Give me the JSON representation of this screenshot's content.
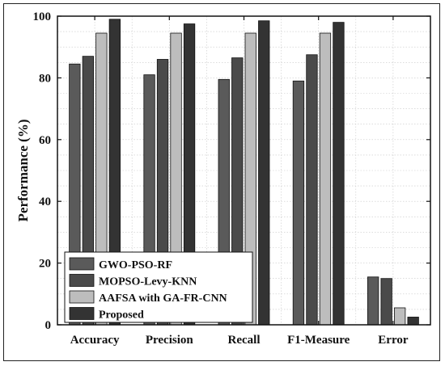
{
  "chart_data": {
    "type": "bar",
    "title": "",
    "xlabel": "",
    "ylabel": "Performance (%)",
    "ylim": [
      0,
      100
    ],
    "yticks": [
      0,
      20,
      40,
      60,
      80,
      100
    ],
    "grid": true,
    "legend_position": "bottom-left",
    "categories": [
      "Accuracy",
      "Precision",
      "Recall",
      "F1-Measure",
      "Error"
    ],
    "series": [
      {
        "name": "GWO-PSO-RF",
        "color": "#5a5a5a",
        "values": [
          84.5,
          81.0,
          79.5,
          79.0,
          15.5
        ]
      },
      {
        "name": "MOPSO-Levy-KNN",
        "color": "#4a4a4a",
        "values": [
          87.0,
          86.0,
          86.5,
          87.5,
          15.0
        ]
      },
      {
        "name": "AAFSA with GA-FR-CNN",
        "color": "#bdbdbd",
        "values": [
          94.5,
          94.5,
          94.5,
          94.5,
          5.5
        ]
      },
      {
        "name": "Proposed",
        "color": "#333333",
        "values": [
          99.0,
          97.5,
          98.5,
          98.0,
          2.5
        ]
      }
    ]
  }
}
